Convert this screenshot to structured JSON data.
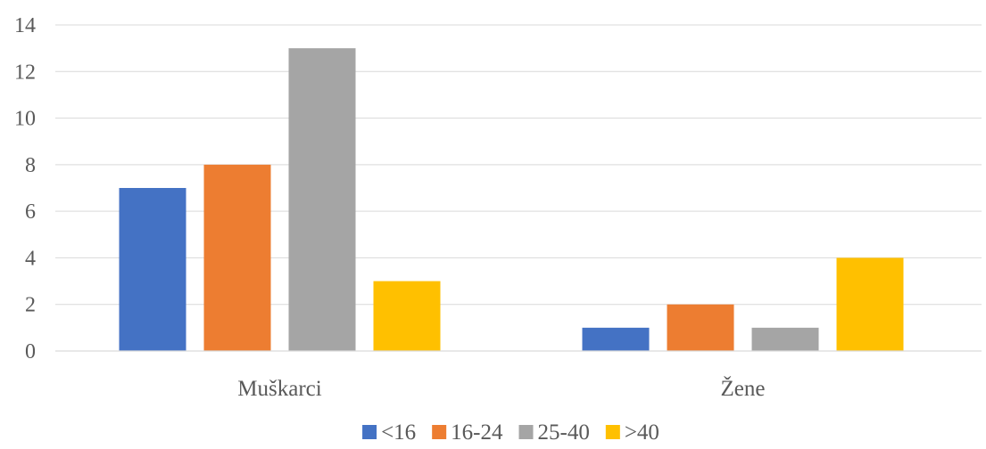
{
  "chart_data": {
    "type": "bar",
    "categories": [
      "Muškarci",
      "Žene"
    ],
    "series": [
      {
        "name": "<16",
        "values": [
          7,
          1
        ],
        "color": "#4472c4"
      },
      {
        "name": "16-24",
        "values": [
          8,
          2
        ],
        "color": "#ed7d31"
      },
      {
        "name": "25-40",
        "values": [
          13,
          1
        ],
        "color": "#a5a5a5"
      },
      {
        "name": ">40",
        "values": [
          3,
          4
        ],
        "color": "#ffc000"
      }
    ],
    "title": "",
    "xlabel": "",
    "ylabel": "",
    "ylim": [
      0,
      14
    ],
    "yticks": [
      0,
      2,
      4,
      6,
      8,
      10,
      12,
      14
    ],
    "grid": true,
    "legend_position": "bottom"
  }
}
